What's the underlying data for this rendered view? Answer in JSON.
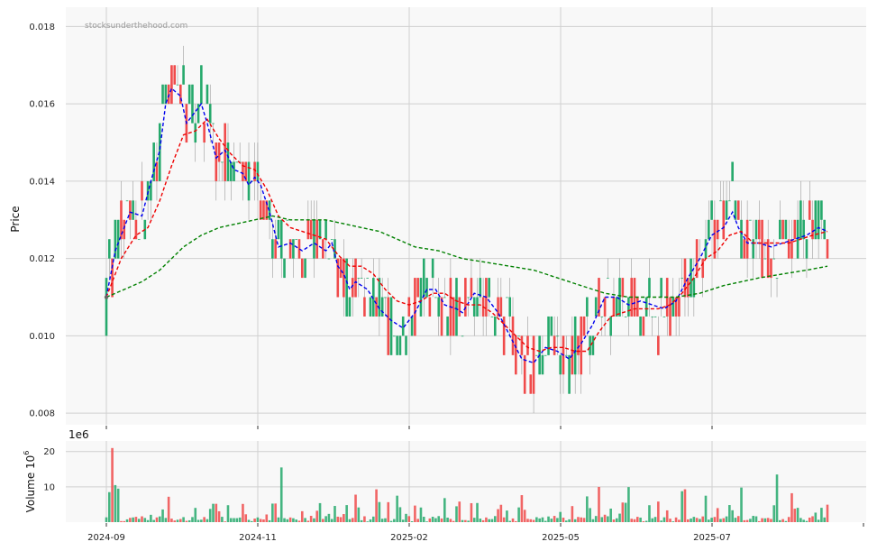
{
  "watermark": "stocksunderthehood.com",
  "colors": {
    "up": "#26a96c",
    "down": "#f04b4b",
    "ma_short": "#0000ee",
    "ma_mid": "#ee0000",
    "ma_long": "#008000",
    "panel_bg": "#f8f8f8",
    "grid": "#d0d0d0"
  },
  "chart_data": [
    {
      "type": "candlestick",
      "ylabel": "Price",
      "ylim": [
        0.0077,
        0.0185
      ],
      "y_ticks": [
        "0.008",
        "0.010",
        "0.012",
        "0.014",
        "0.016",
        "0.018"
      ],
      "x_ticks": [
        "2024-09",
        "2024-11",
        "2025-02",
        "2025-05",
        "2025-07"
      ],
      "grid": true,
      "series": [
        {
          "kind": "moving-average-short",
          "style": "dashed",
          "points": [
            [
              0,
              0.011
            ],
            [
              3,
              0.0122
            ],
            [
              8,
              0.0132
            ],
            [
              12,
              0.0131
            ],
            [
              15,
              0.014
            ],
            [
              18,
              0.0148
            ],
            [
              20,
              0.016
            ],
            [
              22,
              0.0164
            ],
            [
              25,
              0.0162
            ],
            [
              27,
              0.0155
            ],
            [
              30,
              0.0158
            ],
            [
              32,
              0.016
            ],
            [
              34,
              0.0155
            ],
            [
              37,
              0.0146
            ],
            [
              40,
              0.0148
            ],
            [
              43,
              0.0143
            ],
            [
              46,
              0.0142
            ],
            [
              48,
              0.0139
            ],
            [
              50,
              0.0141
            ],
            [
              52,
              0.0139
            ],
            [
              55,
              0.0132
            ],
            [
              58,
              0.0123
            ],
            [
              62,
              0.0124
            ],
            [
              66,
              0.0122
            ],
            [
              70,
              0.0124
            ],
            [
              74,
              0.0122
            ],
            [
              76,
              0.0124
            ],
            [
              78,
              0.0118
            ],
            [
              80,
              0.0116
            ],
            [
              82,
              0.0112
            ],
            [
              84,
              0.0114
            ],
            [
              88,
              0.0112
            ],
            [
              92,
              0.0107
            ],
            [
              96,
              0.0104
            ],
            [
              100,
              0.0102
            ],
            [
              104,
              0.0106
            ],
            [
              108,
              0.0112
            ],
            [
              111,
              0.0112
            ],
            [
              114,
              0.0108
            ],
            [
              118,
              0.0107
            ],
            [
              120,
              0.0106
            ],
            [
              124,
              0.0111
            ],
            [
              128,
              0.011
            ],
            [
              132,
              0.0106
            ],
            [
              136,
              0.01
            ],
            [
              140,
              0.0094
            ],
            [
              144,
              0.0093
            ],
            [
              148,
              0.0097
            ],
            [
              152,
              0.0096
            ],
            [
              156,
              0.0094
            ],
            [
              160,
              0.0098
            ],
            [
              164,
              0.0103
            ],
            [
              168,
              0.011
            ],
            [
              172,
              0.011
            ],
            [
              176,
              0.0108
            ],
            [
              180,
              0.0109
            ],
            [
              184,
              0.0108
            ],
            [
              188,
              0.0107
            ],
            [
              192,
              0.0109
            ],
            [
              196,
              0.0115
            ],
            [
              200,
              0.012
            ],
            [
              204,
              0.0126
            ],
            [
              208,
              0.0128
            ],
            [
              211,
              0.0132
            ],
            [
              213,
              0.0128
            ],
            [
              216,
              0.0124
            ],
            [
              220,
              0.0124
            ],
            [
              224,
              0.0123
            ],
            [
              228,
              0.0124
            ],
            [
              232,
              0.0125
            ],
            [
              236,
              0.0126
            ],
            [
              240,
              0.0128
            ],
            [
              243,
              0.0127
            ]
          ]
        },
        {
          "kind": "moving-average-mid",
          "style": "dashed",
          "points": [
            [
              0,
              0.011
            ],
            [
              5,
              0.012
            ],
            [
              10,
              0.0126
            ],
            [
              14,
              0.0128
            ],
            [
              18,
              0.0135
            ],
            [
              22,
              0.0144
            ],
            [
              26,
              0.0152
            ],
            [
              30,
              0.0153
            ],
            [
              34,
              0.0156
            ],
            [
              38,
              0.0151
            ],
            [
              42,
              0.0147
            ],
            [
              46,
              0.0144
            ],
            [
              50,
              0.0143
            ],
            [
              54,
              0.0138
            ],
            [
              58,
              0.0131
            ],
            [
              62,
              0.0128
            ],
            [
              66,
              0.0127
            ],
            [
              70,
              0.0126
            ],
            [
              74,
              0.0125
            ],
            [
              78,
              0.0121
            ],
            [
              82,
              0.0118
            ],
            [
              86,
              0.0118
            ],
            [
              90,
              0.0116
            ],
            [
              94,
              0.0112
            ],
            [
              98,
              0.0109
            ],
            [
              102,
              0.0108
            ],
            [
              106,
              0.0109
            ],
            [
              110,
              0.0111
            ],
            [
              114,
              0.0111
            ],
            [
              118,
              0.0109
            ],
            [
              122,
              0.0108
            ],
            [
              126,
              0.0108
            ],
            [
              130,
              0.0106
            ],
            [
              134,
              0.0103
            ],
            [
              138,
              0.01
            ],
            [
              142,
              0.0097
            ],
            [
              146,
              0.0096
            ],
            [
              150,
              0.0097
            ],
            [
              154,
              0.0097
            ],
            [
              158,
              0.0096
            ],
            [
              162,
              0.0096
            ],
            [
              166,
              0.0101
            ],
            [
              170,
              0.0105
            ],
            [
              174,
              0.0106
            ],
            [
              178,
              0.0107
            ],
            [
              182,
              0.0107
            ],
            [
              186,
              0.0107
            ],
            [
              190,
              0.0108
            ],
            [
              194,
              0.0111
            ],
            [
              198,
              0.0115
            ],
            [
              202,
              0.012
            ],
            [
              206,
              0.0122
            ],
            [
              210,
              0.0126
            ],
            [
              214,
              0.0127
            ],
            [
              218,
              0.0124
            ],
            [
              222,
              0.0124
            ],
            [
              226,
              0.0124
            ],
            [
              230,
              0.0124
            ],
            [
              234,
              0.0125
            ],
            [
              238,
              0.0126
            ],
            [
              243,
              0.0127
            ]
          ]
        },
        {
          "kind": "moving-average-long",
          "style": "dashed",
          "points": [
            [
              0,
              0.011
            ],
            [
              6,
              0.0112
            ],
            [
              12,
              0.0114
            ],
            [
              18,
              0.0117
            ],
            [
              22,
              0.012
            ],
            [
              26,
              0.0123
            ],
            [
              32,
              0.0126
            ],
            [
              38,
              0.0128
            ],
            [
              44,
              0.0129
            ],
            [
              50,
              0.013
            ],
            [
              56,
              0.0131
            ],
            [
              62,
              0.013
            ],
            [
              68,
              0.013
            ],
            [
              74,
              0.013
            ],
            [
              80,
              0.0129
            ],
            [
              86,
              0.0128
            ],
            [
              92,
              0.0127
            ],
            [
              98,
              0.0125
            ],
            [
              104,
              0.0123
            ],
            [
              112,
              0.0122
            ],
            [
              120,
              0.012
            ],
            [
              128,
              0.0119
            ],
            [
              136,
              0.0118
            ],
            [
              144,
              0.0117
            ],
            [
              152,
              0.0115
            ],
            [
              160,
              0.0113
            ],
            [
              168,
              0.0111
            ],
            [
              176,
              0.011
            ],
            [
              184,
              0.011
            ],
            [
              192,
              0.011
            ],
            [
              200,
              0.0111
            ],
            [
              208,
              0.0113
            ],
            [
              214,
              0.0114
            ],
            [
              220,
              0.0115
            ],
            [
              228,
              0.0116
            ],
            [
              236,
              0.0117
            ],
            [
              243,
              0.0118
            ]
          ]
        }
      ]
    },
    {
      "type": "bar",
      "ylabel": "Volume  10",
      "ylabel_exponent": "6",
      "offset_text": "1e6",
      "ylim": [
        0,
        23
      ],
      "y_ticks": [
        "10",
        "20"
      ],
      "grid": true
    }
  ]
}
